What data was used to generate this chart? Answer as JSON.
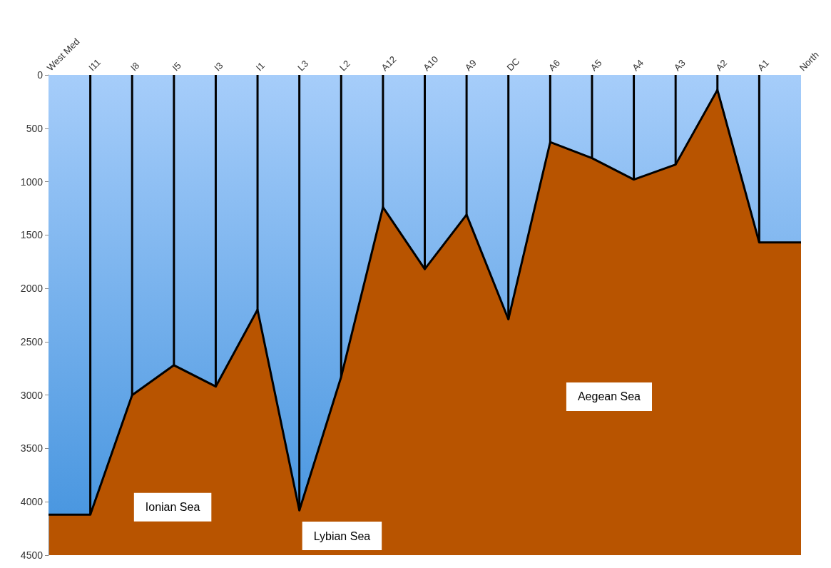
{
  "chart_data": {
    "type": "area",
    "categories": [
      "West Med",
      "I11",
      "I8",
      "I5",
      "I3",
      "I1",
      "L3",
      "L2",
      "A12",
      "A10",
      "A9",
      "DC",
      "A6",
      "A5",
      "A4",
      "A3",
      "A2",
      "A1",
      "North"
    ],
    "series": [
      {
        "color": "#4a97e0",
        "values": [
          4120,
          4120,
          3000,
          2720,
          2920,
          2200,
          4080,
          2830,
          1240,
          1820,
          1310,
          2290,
          630,
          780,
          980,
          840,
          140,
          1570,
          1570
        ]
      },
      {
        "type": "bar",
        "color": "#000000",
        "values": [
          null,
          4120,
          3000,
          2720,
          2920,
          2200,
          4080,
          2830,
          1240,
          1820,
          1310,
          2290,
          630,
          780,
          980,
          840,
          140,
          1570,
          null
        ]
      }
    ],
    "ylim": [
      4500,
      0
    ],
    "yticks": [
      0,
      500,
      1000,
      1500,
      2000,
      2500,
      3000,
      3500,
      4000,
      4500
    ],
    "grid": false,
    "annotations": [
      "Ionian Sea",
      "Lybian Sea",
      "Aegean Sea"
    ]
  }
}
